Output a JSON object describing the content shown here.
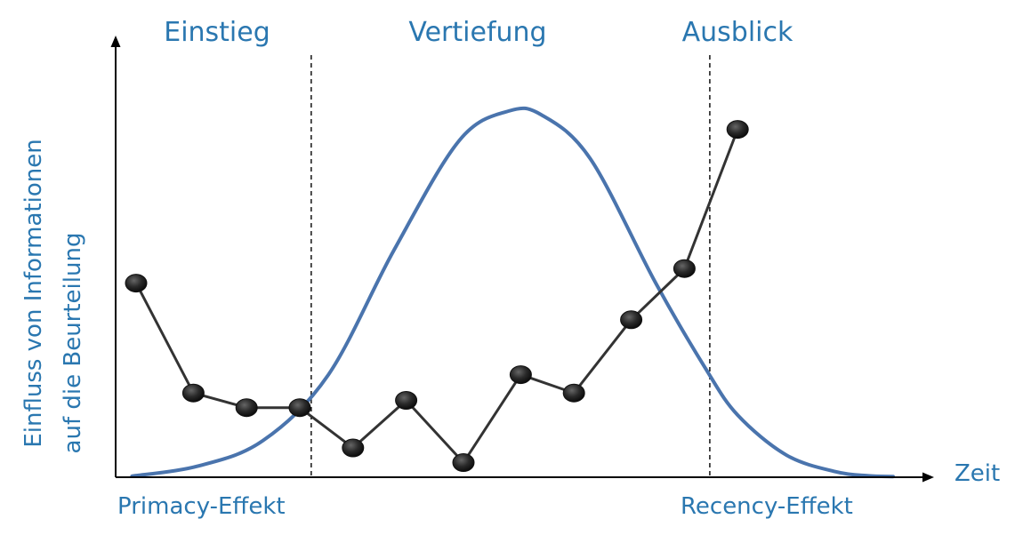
{
  "chart_data": {
    "type": "line",
    "phases": [
      "Einstieg",
      "Vertiefung",
      "Ausblick"
    ],
    "ylabel_lines": [
      "Einfluss von Informationen",
      "auf die Beurteilung"
    ],
    "xlabel": "Zeit",
    "annotations": {
      "start": "Primacy-Effekt",
      "end": "Recency-Effekt"
    },
    "xlim": [
      0,
      100
    ],
    "ylim": [
      0,
      100
    ],
    "grid": false,
    "phase_boundaries": [
      23.9,
      72.6
    ],
    "series": [
      {
        "style": "marker-line",
        "color": "#333333",
        "x": [
          2.5,
          9.5,
          16.0,
          22.5,
          29.0,
          35.5,
          42.5,
          49.5,
          56.0,
          63.0,
          69.5,
          76.0
        ],
        "y": [
          53,
          23,
          19,
          19,
          8,
          21,
          4,
          28,
          23,
          43,
          57,
          95
        ]
      },
      {
        "style": "curve",
        "color": "#4a74ad",
        "x": [
          2,
          10,
          18,
          26,
          34,
          42,
          48,
          52,
          58,
          66,
          72,
          76,
          82,
          88,
          92,
          95
        ],
        "y": [
          0.3,
          3,
          10,
          28,
          62,
          92,
          100,
          99,
          87,
          53,
          30,
          17,
          6,
          1.5,
          0.4,
          0.2
        ]
      }
    ]
  }
}
